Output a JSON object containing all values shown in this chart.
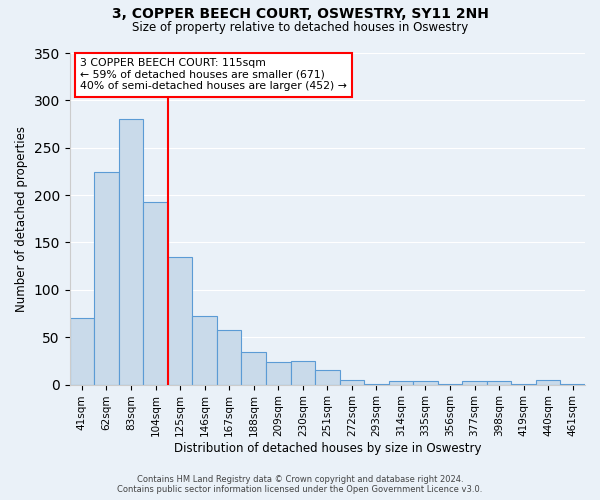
{
  "title": "3, COPPER BEECH COURT, OSWESTRY, SY11 2NH",
  "subtitle": "Size of property relative to detached houses in Oswestry",
  "xlabel": "Distribution of detached houses by size in Oswestry",
  "ylabel": "Number of detached properties",
  "bar_labels": [
    "41sqm",
    "62sqm",
    "83sqm",
    "104sqm",
    "125sqm",
    "146sqm",
    "167sqm",
    "188sqm",
    "209sqm",
    "230sqm",
    "251sqm",
    "272sqm",
    "293sqm",
    "314sqm",
    "335sqm",
    "356sqm",
    "377sqm",
    "398sqm",
    "419sqm",
    "440sqm",
    "461sqm"
  ],
  "bar_values": [
    70,
    224,
    280,
    193,
    135,
    72,
    58,
    34,
    24,
    25,
    15,
    5,
    1,
    4,
    4,
    1,
    4,
    4,
    1,
    5,
    1
  ],
  "bar_color": "#c9daea",
  "bar_edge_color": "#5b9bd5",
  "background_color": "#eaf1f8",
  "vline_color": "red",
  "vline_position": 3.5,
  "annotation_text_line1": "3 COPPER BEECH COURT: 115sqm",
  "annotation_text_line2": "← 59% of detached houses are smaller (671)",
  "annotation_text_line3": "40% of semi-detached houses are larger (452) →",
  "annotation_box_color": "white",
  "annotation_box_edge_color": "red",
  "ylim": [
    0,
    350
  ],
  "yticks": [
    0,
    50,
    100,
    150,
    200,
    250,
    300,
    350
  ],
  "footer_line1": "Contains HM Land Registry data © Crown copyright and database right 2024.",
  "footer_line2": "Contains public sector information licensed under the Open Government Licence v3.0."
}
